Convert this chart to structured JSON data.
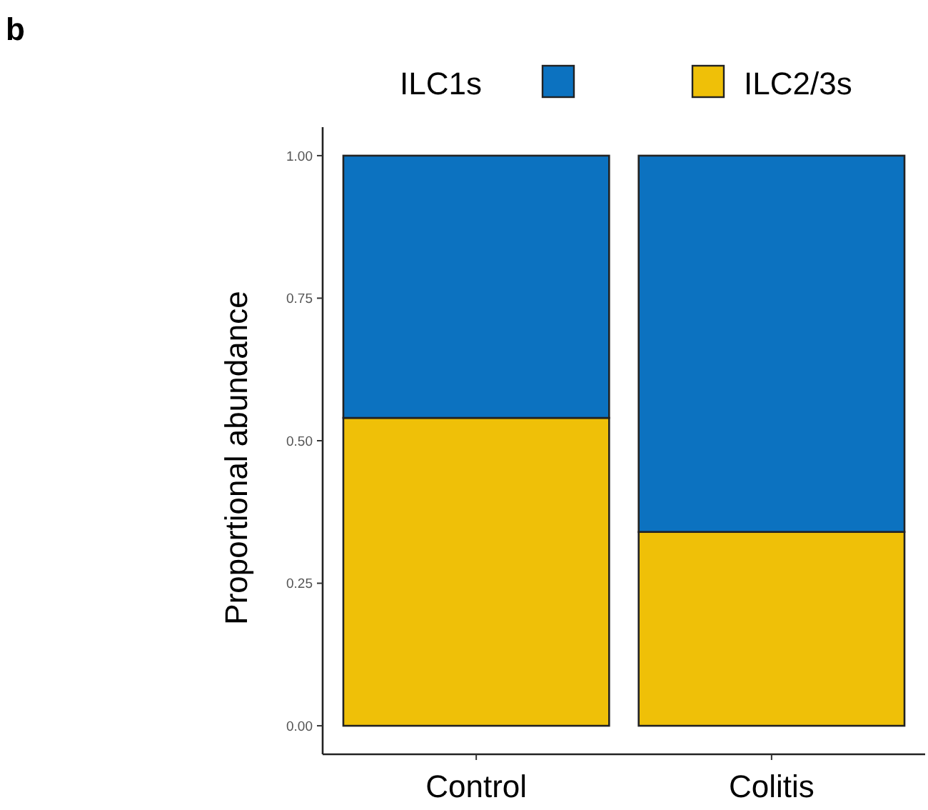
{
  "chart_data": {
    "type": "bar",
    "stacked": true,
    "ylabel": "Proportional abundance",
    "annotations": [
      "b"
    ],
    "categories": [
      "Control",
      "Colitis"
    ],
    "series": [
      {
        "name": "ILC2/3s",
        "color": "#efc008",
        "values": [
          0.54,
          0.34
        ]
      },
      {
        "name": "ILC1s",
        "color": "#0c72c0",
        "values": [
          0.46,
          0.66
        ]
      }
    ],
    "ylim": [
      -0.05,
      1.05
    ],
    "yticks": [
      {
        "value": 0,
        "label": "0.00"
      },
      {
        "value": 0.25,
        "label": "0.25"
      },
      {
        "value": 0.5,
        "label": "0.50"
      },
      {
        "value": 0.75,
        "label": "0.75"
      },
      {
        "value": 1,
        "label": "1.00"
      }
    ],
    "grid": false,
    "legend": "top"
  }
}
